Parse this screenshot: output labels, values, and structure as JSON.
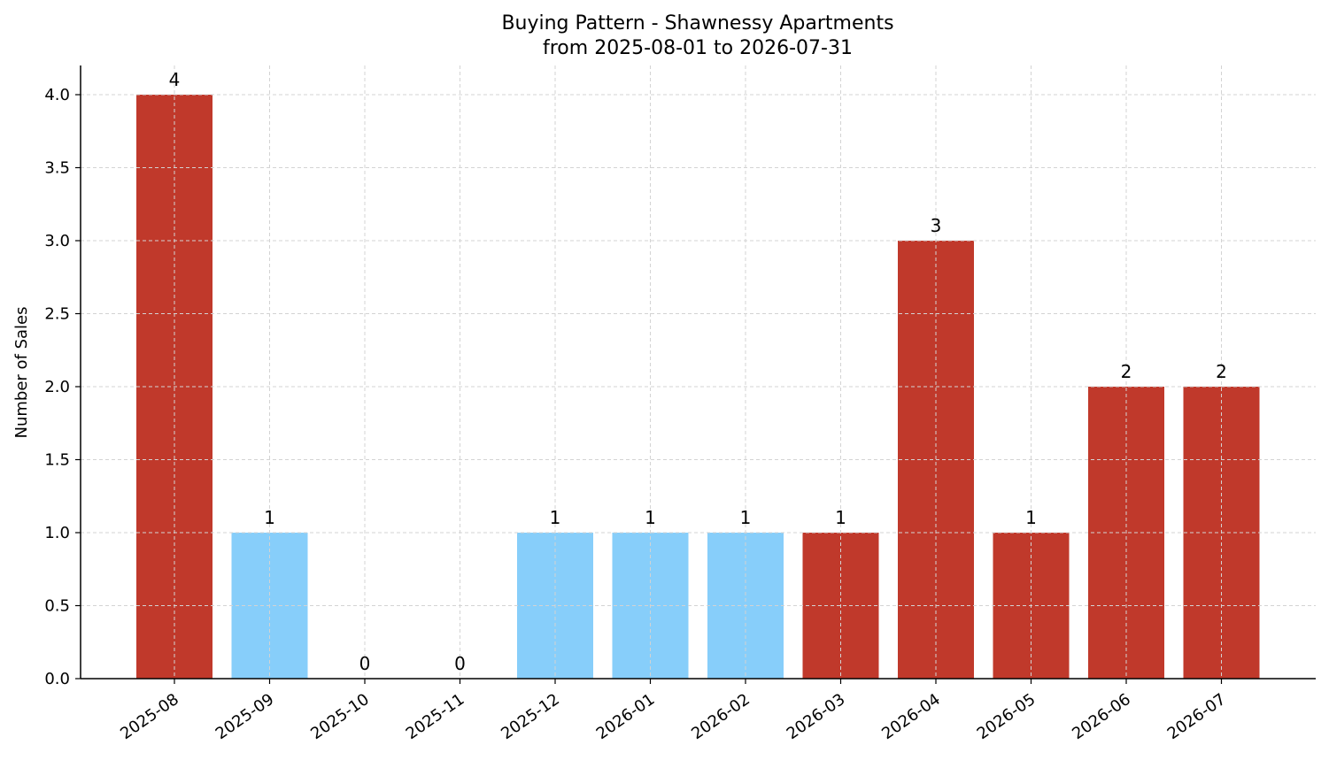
{
  "chart_data": {
    "type": "bar",
    "title": "Buying Pattern - Shawnessy Apartments",
    "subtitle": "from 2025-08-01 to 2026-07-31",
    "xlabel": "",
    "ylabel": "Number of Sales",
    "categories": [
      "2025-08",
      "2025-09",
      "2025-10",
      "2025-11",
      "2025-12",
      "2026-01",
      "2026-02",
      "2026-03",
      "2026-04",
      "2026-05",
      "2026-06",
      "2026-07"
    ],
    "values": [
      4,
      1,
      0,
      0,
      1,
      1,
      1,
      1,
      3,
      1,
      2,
      2
    ],
    "bar_colors": [
      "#c0392b",
      "#87cefa",
      "#87cefa",
      "#87cefa",
      "#87cefa",
      "#87cefa",
      "#87cefa",
      "#c0392b",
      "#c0392b",
      "#c0392b",
      "#c0392b",
      "#c0392b"
    ],
    "data_labels": [
      "4",
      "1",
      "0",
      "0",
      "1",
      "1",
      "1",
      "1",
      "3",
      "1",
      "2",
      "2"
    ],
    "y_ticks": [
      "0.0",
      "0.5",
      "1.0",
      "1.5",
      "2.0",
      "2.5",
      "3.0",
      "3.5",
      "4.0"
    ],
    "y_tick_values": [
      0,
      0.5,
      1,
      1.5,
      2,
      2.5,
      3,
      3.5,
      4
    ],
    "ylim": [
      0,
      4.2
    ],
    "grid": true,
    "grid_color": "#d3d3d3"
  }
}
